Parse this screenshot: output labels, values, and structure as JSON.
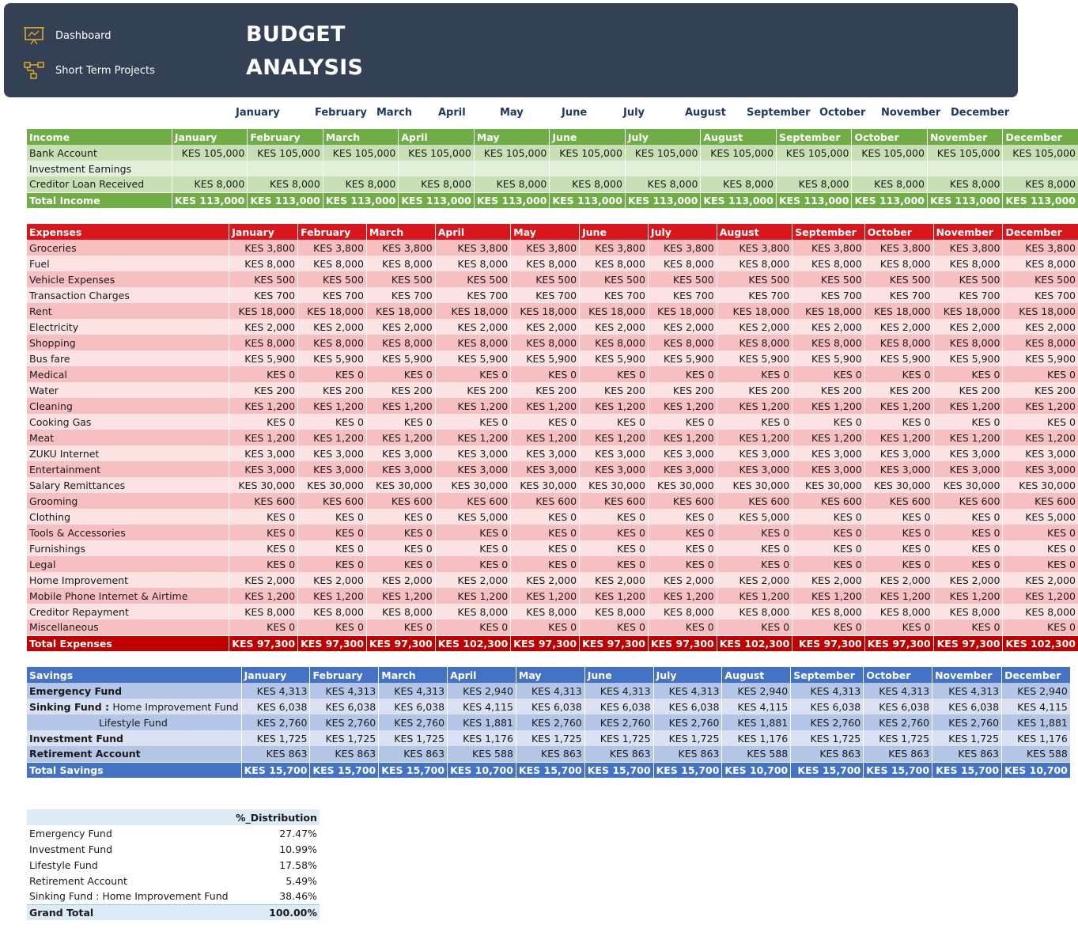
{
  "nav": [
    {
      "label": "Dashboard",
      "icon": "presentation-chart-icon"
    },
    {
      "label": "Short Term Projects",
      "icon": "flowchart-icon"
    }
  ],
  "title": {
    "line1": "BUDGET",
    "line2": "ANALYSIS"
  },
  "colors": {
    "banner": "#344054",
    "accent_icon": "#e0a82e",
    "income_header": "#70ad47",
    "expenses_header": "#d9161c",
    "savings_header": "#4472c4"
  },
  "months": [
    "January",
    "February",
    "March",
    "April",
    "May",
    "June",
    "July",
    "August",
    "September",
    "October",
    "November",
    "December"
  ],
  "income": {
    "header": "Income",
    "rows": [
      {
        "label": "Bank Account",
        "values": [
          "KES 105,000",
          "KES 105,000",
          "KES 105,000",
          "KES 105,000",
          "KES 105,000",
          "KES 105,000",
          "KES 105,000",
          "KES 105,000",
          "KES 105,000",
          "KES 105,000",
          "KES 105,000",
          "KES 105,000"
        ]
      },
      {
        "label": "Investment Earnings",
        "values": [
          "",
          "",
          "",
          "",
          "",
          "",
          "",
          "",
          "",
          "",
          "",
          ""
        ]
      },
      {
        "label": "Creditor Loan Received",
        "values": [
          "KES 8,000",
          "KES 8,000",
          "KES 8,000",
          "KES 8,000",
          "KES 8,000",
          "KES 8,000",
          "KES 8,000",
          "KES 8,000",
          "KES 8,000",
          "KES 8,000",
          "KES 8,000",
          "KES 8,000"
        ]
      }
    ],
    "total": {
      "label": "Total Income",
      "values": [
        "KES 113,000",
        "KES 113,000",
        "KES 113,000",
        "KES 113,000",
        "KES 113,000",
        "KES 113,000",
        "KES 113,000",
        "KES 113,000",
        "KES 113,000",
        "KES 113,000",
        "KES 113,000",
        "KES 113,000"
      ]
    }
  },
  "expenses": {
    "header": "Expenses",
    "rows": [
      {
        "label": "Groceries",
        "values": [
          "KES 3,800",
          "KES 3,800",
          "KES 3,800",
          "KES 3,800",
          "KES 3,800",
          "KES 3,800",
          "KES 3,800",
          "KES 3,800",
          "KES 3,800",
          "KES 3,800",
          "KES 3,800",
          "KES 3,800"
        ]
      },
      {
        "label": "Fuel",
        "values": [
          "KES 8,000",
          "KES 8,000",
          "KES 8,000",
          "KES 8,000",
          "KES 8,000",
          "KES 8,000",
          "KES 8,000",
          "KES 8,000",
          "KES 8,000",
          "KES 8,000",
          "KES 8,000",
          "KES 8,000"
        ]
      },
      {
        "label": "Vehicle Expenses",
        "values": [
          "KES 500",
          "KES 500",
          "KES 500",
          "KES 500",
          "KES 500",
          "KES 500",
          "KES 500",
          "KES 500",
          "KES 500",
          "KES 500",
          "KES 500",
          "KES 500"
        ]
      },
      {
        "label": "Transaction Charges",
        "values": [
          "KES 700",
          "KES 700",
          "KES 700",
          "KES 700",
          "KES 700",
          "KES 700",
          "KES 700",
          "KES 700",
          "KES 700",
          "KES 700",
          "KES 700",
          "KES 700"
        ]
      },
      {
        "label": "Rent",
        "values": [
          "KES 18,000",
          "KES 18,000",
          "KES 18,000",
          "KES 18,000",
          "KES 18,000",
          "KES 18,000",
          "KES 18,000",
          "KES 18,000",
          "KES 18,000",
          "KES 18,000",
          "KES 18,000",
          "KES 18,000"
        ]
      },
      {
        "label": "Electricity",
        "values": [
          "KES 2,000",
          "KES 2,000",
          "KES 2,000",
          "KES 2,000",
          "KES 2,000",
          "KES 2,000",
          "KES 2,000",
          "KES 2,000",
          "KES 2,000",
          "KES 2,000",
          "KES 2,000",
          "KES 2,000"
        ]
      },
      {
        "label": "Shopping",
        "values": [
          "KES 8,000",
          "KES 8,000",
          "KES 8,000",
          "KES 8,000",
          "KES 8,000",
          "KES 8,000",
          "KES 8,000",
          "KES 8,000",
          "KES 8,000",
          "KES 8,000",
          "KES 8,000",
          "KES 8,000"
        ]
      },
      {
        "label": "Bus fare",
        "values": [
          "KES 5,900",
          "KES 5,900",
          "KES 5,900",
          "KES 5,900",
          "KES 5,900",
          "KES 5,900",
          "KES 5,900",
          "KES 5,900",
          "KES 5,900",
          "KES 5,900",
          "KES 5,900",
          "KES 5,900"
        ]
      },
      {
        "label": "Medical",
        "values": [
          "KES 0",
          "KES 0",
          "KES 0",
          "KES 0",
          "KES 0",
          "KES 0",
          "KES 0",
          "KES 0",
          "KES 0",
          "KES 0",
          "KES 0",
          "KES 0"
        ]
      },
      {
        "label": "Water",
        "values": [
          "KES 200",
          "KES 200",
          "KES 200",
          "KES 200",
          "KES 200",
          "KES 200",
          "KES 200",
          "KES 200",
          "KES 200",
          "KES 200",
          "KES 200",
          "KES 200"
        ]
      },
      {
        "label": "Cleaning",
        "values": [
          "KES 1,200",
          "KES 1,200",
          "KES 1,200",
          "KES 1,200",
          "KES 1,200",
          "KES 1,200",
          "KES 1,200",
          "KES 1,200",
          "KES 1,200",
          "KES 1,200",
          "KES 1,200",
          "KES 1,200"
        ]
      },
      {
        "label": "Cooking Gas",
        "values": [
          "KES 0",
          "KES 0",
          "KES 0",
          "KES 0",
          "KES 0",
          "KES 0",
          "KES 0",
          "KES 0",
          "KES 0",
          "KES 0",
          "KES 0",
          "KES 0"
        ]
      },
      {
        "label": "Meat",
        "values": [
          "KES 1,200",
          "KES 1,200",
          "KES 1,200",
          "KES 1,200",
          "KES 1,200",
          "KES 1,200",
          "KES 1,200",
          "KES 1,200",
          "KES 1,200",
          "KES 1,200",
          "KES 1,200",
          "KES 1,200"
        ]
      },
      {
        "label": "ZUKU Internet",
        "values": [
          "KES 3,000",
          "KES 3,000",
          "KES 3,000",
          "KES 3,000",
          "KES 3,000",
          "KES 3,000",
          "KES 3,000",
          "KES 3,000",
          "KES 3,000",
          "KES 3,000",
          "KES 3,000",
          "KES 3,000"
        ]
      },
      {
        "label": "Entertainment",
        "values": [
          "KES 3,000",
          "KES 3,000",
          "KES 3,000",
          "KES 3,000",
          "KES 3,000",
          "KES 3,000",
          "KES 3,000",
          "KES 3,000",
          "KES 3,000",
          "KES 3,000",
          "KES 3,000",
          "KES 3,000"
        ]
      },
      {
        "label": "Salary Remittances",
        "values": [
          "KES 30,000",
          "KES 30,000",
          "KES 30,000",
          "KES 30,000",
          "KES 30,000",
          "KES 30,000",
          "KES 30,000",
          "KES 30,000",
          "KES 30,000",
          "KES 30,000",
          "KES 30,000",
          "KES 30,000"
        ]
      },
      {
        "label": "Grooming",
        "values": [
          "KES 600",
          "KES 600",
          "KES 600",
          "KES 600",
          "KES 600",
          "KES 600",
          "KES 600",
          "KES 600",
          "KES 600",
          "KES 600",
          "KES 600",
          "KES 600"
        ]
      },
      {
        "label": "Clothing",
        "values": [
          "KES 0",
          "KES 0",
          "KES 0",
          "KES 5,000",
          "KES 0",
          "KES 0",
          "KES 0",
          "KES 5,000",
          "KES 0",
          "KES 0",
          "KES 0",
          "KES 5,000"
        ]
      },
      {
        "label": "Tools & Accessories",
        "values": [
          "KES 0",
          "KES 0",
          "KES 0",
          "KES 0",
          "KES 0",
          "KES 0",
          "KES 0",
          "KES 0",
          "KES 0",
          "KES 0",
          "KES 0",
          "KES 0"
        ]
      },
      {
        "label": "Furnishings",
        "values": [
          "KES 0",
          "KES 0",
          "KES 0",
          "KES 0",
          "KES 0",
          "KES 0",
          "KES 0",
          "KES 0",
          "KES 0",
          "KES 0",
          "KES 0",
          "KES 0"
        ]
      },
      {
        "label": "Legal",
        "values": [
          "KES 0",
          "KES 0",
          "KES 0",
          "KES 0",
          "KES 0",
          "KES 0",
          "KES 0",
          "KES 0",
          "KES 0",
          "KES 0",
          "KES 0",
          "KES 0"
        ]
      },
      {
        "label": "Home Improvement",
        "values": [
          "KES 2,000",
          "KES 2,000",
          "KES 2,000",
          "KES 2,000",
          "KES 2,000",
          "KES 2,000",
          "KES 2,000",
          "KES 2,000",
          "KES 2,000",
          "KES 2,000",
          "KES 2,000",
          "KES 2,000"
        ]
      },
      {
        "label": "Mobile Phone Internet & Airtime",
        "values": [
          "KES 1,200",
          "KES 1,200",
          "KES 1,200",
          "KES 1,200",
          "KES 1,200",
          "KES 1,200",
          "KES 1,200",
          "KES 1,200",
          "KES 1,200",
          "KES 1,200",
          "KES 1,200",
          "KES 1,200"
        ]
      },
      {
        "label": "Creditor Repayment",
        "values": [
          "KES 8,000",
          "KES 8,000",
          "KES 8,000",
          "KES 8,000",
          "KES 8,000",
          "KES 8,000",
          "KES 8,000",
          "KES 8,000",
          "KES 8,000",
          "KES 8,000",
          "KES 8,000",
          "KES 8,000"
        ]
      },
      {
        "label": "Miscellaneous",
        "values": [
          "KES 0",
          "KES 0",
          "KES 0",
          "KES 0",
          "KES 0",
          "KES 0",
          "KES 0",
          "KES 0",
          "KES 0",
          "KES 0",
          "KES 0",
          "KES 0"
        ]
      }
    ],
    "total": {
      "label": "Total Expenses",
      "values": [
        "KES 97,300",
        "KES 97,300",
        "KES 97,300",
        "KES 102,300",
        "KES 97,300",
        "KES 97,300",
        "KES 97,300",
        "KES 102,300",
        "KES 97,300",
        "KES 97,300",
        "KES 97,300",
        "KES 102,300"
      ]
    }
  },
  "savings": {
    "header": "Savings",
    "rows": [
      {
        "label": "Emergency Fund",
        "values": [
          "KES 4,313",
          "KES 4,313",
          "KES 4,313",
          "KES 2,940",
          "KES 4,313",
          "KES 4,313",
          "KES 4,313",
          "KES 2,940",
          "KES 4,313",
          "KES 4,313",
          "KES 4,313",
          "KES 2,940"
        ]
      },
      {
        "label": "Sinking Fund : ",
        "label_rest": "Home Improvement Fund",
        "values": [
          "KES 6,038",
          "KES 6,038",
          "KES 6,038",
          "KES 4,115",
          "KES 6,038",
          "KES 6,038",
          "KES 6,038",
          "KES 4,115",
          "KES 6,038",
          "KES 6,038",
          "KES 6,038",
          "KES 4,115"
        ]
      },
      {
        "label": "Lifestyle Fund",
        "values": [
          "KES 2,760",
          "KES 2,760",
          "KES 2,760",
          "KES 1,881",
          "KES 2,760",
          "KES 2,760",
          "KES 2,760",
          "KES 1,881",
          "KES 2,760",
          "KES 2,760",
          "KES 2,760",
          "KES 1,881"
        ]
      },
      {
        "label": "Investment Fund",
        "values": [
          "KES 1,725",
          "KES 1,725",
          "KES 1,725",
          "KES 1,176",
          "KES 1,725",
          "KES 1,725",
          "KES 1,725",
          "KES 1,176",
          "KES 1,725",
          "KES 1,725",
          "KES 1,725",
          "KES 1,176"
        ]
      },
      {
        "label": "Retirement Account",
        "values": [
          "KES 863",
          "KES 863",
          "KES 863",
          "KES 588",
          "KES 863",
          "KES 863",
          "KES 863",
          "KES 588",
          "KES 863",
          "KES 863",
          "KES 863",
          "KES 588"
        ]
      }
    ],
    "total": {
      "label": "Total Savings",
      "values": [
        "KES 15,700",
        "KES 15,700",
        "KES 15,700",
        "KES 10,700",
        "KES 15,700",
        "KES 15,700",
        "KES 15,700",
        "KES 10,700",
        "KES 15,700",
        "KES 15,700",
        "KES 15,700",
        "KES 10,700"
      ]
    }
  },
  "distribution": {
    "header": "%_Distribution",
    "rows": [
      {
        "label": "Emergency Fund",
        "value": "27.47%"
      },
      {
        "label": "Investment Fund",
        "value": "10.99%"
      },
      {
        "label": "Lifestyle Fund",
        "value": "17.58%"
      },
      {
        "label": "Retirement Account",
        "value": "5.49%"
      },
      {
        "label": "Sinking Fund : Home Improvement Fund",
        "value": "38.46%"
      }
    ],
    "total": {
      "label": "Grand Total",
      "value": "100.00%"
    }
  }
}
